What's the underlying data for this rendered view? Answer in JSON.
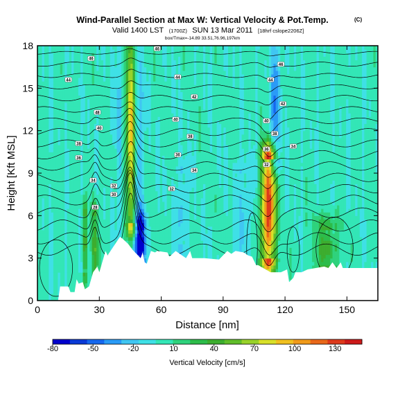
{
  "chart_data": {
    "type": "heatmap",
    "title": "Wind-Parallel Section at Max W: Vertical Velocity & Pot.Temp.",
    "title_mark": "(C)",
    "subtitle_main": "Valid 1400 LST",
    "subtitle_utc": "(1700Z)",
    "subtitle_date": "SUN 13 Mar 2011",
    "subtitle_tag": "[18hrf cslope2206Z]",
    "subtitle2": "box/Tmax=-14.89 33.51,76.96,197km",
    "xlabel": "Distance [nm]",
    "ylabel": "Height [Kft MSL]",
    "xlim": [
      0,
      165
    ],
    "ylim": [
      0,
      18
    ],
    "xticks": [
      "0",
      "30",
      "60",
      "90",
      "120",
      "150"
    ],
    "xtick_values": [
      0,
      30,
      60,
      90,
      120,
      150
    ],
    "yticks": [
      "0",
      "3",
      "6",
      "9",
      "12",
      "15",
      "18"
    ],
    "ytick_values": [
      0,
      3,
      6,
      9,
      12,
      15,
      18
    ],
    "colorbar": {
      "label": "Vertical Velocity [cm/s]",
      "tick_labels": [
        "-80",
        "-50",
        "-20",
        "10",
        "40",
        "70",
        "100",
        "130"
      ],
      "tick_values": [
        -80,
        -50,
        -20,
        10,
        40,
        70,
        100,
        130
      ],
      "min": -80,
      "max": 150,
      "colors": [
        "#0000cc",
        "#0a3ad6",
        "#1668ee",
        "#2a9bf6",
        "#40c6f2",
        "#3fe0e6",
        "#33e6b6",
        "#2fd27c",
        "#2dbc4a",
        "#3dad2f",
        "#60bd2a",
        "#98d22a",
        "#d8e02a",
        "#f0c020",
        "#f09a1a",
        "#e8681a",
        "#dd3a1c",
        "#cc1a1a"
      ]
    },
    "background_w": 0,
    "features": [
      {
        "kind": "updraft",
        "x": 45.5,
        "width": 2.6,
        "ylo": 5.5,
        "yhi": 18,
        "peak": 95
      },
      {
        "kind": "updraft",
        "x": 112,
        "width": 3.4,
        "ylo": 3,
        "yhi": 10,
        "peak": 140
      },
      {
        "kind": "updraft",
        "x": 28,
        "width": 1.5,
        "ylo": 1,
        "yhi": 6,
        "peak": 50
      },
      {
        "kind": "updraft",
        "x": 23,
        "width": 1.2,
        "ylo": 2,
        "yhi": 6,
        "peak": 45
      },
      {
        "kind": "updraft",
        "x": 140,
        "width": 6,
        "ylo": 2.5,
        "yhi": 5,
        "peak": 40
      },
      {
        "kind": "downdraft",
        "x": 48.5,
        "width": 2.2,
        "ylo": 2.5,
        "yhi": 18,
        "peak": -45
      },
      {
        "kind": "downdraft",
        "x": 50,
        "width": 2.5,
        "ylo": 3,
        "yhi": 5,
        "peak": -75
      },
      {
        "kind": "downdraft",
        "x": 115.5,
        "width": 2,
        "ylo": 10,
        "yhi": 18,
        "peak": -45
      },
      {
        "kind": "downdraft",
        "x": 40,
        "width": 1.8,
        "ylo": 5,
        "yhi": 18,
        "peak": -20
      },
      {
        "kind": "downdraft",
        "x": 70,
        "width": 2.5,
        "ylo": 4,
        "yhi": 9,
        "peak": -20
      },
      {
        "kind": "downdraft",
        "x": 100,
        "width": 4,
        "ylo": 3,
        "yhi": 9,
        "peak": -18
      }
    ],
    "terrain_profile": {
      "x": [
        0,
        10,
        11,
        15,
        16,
        18,
        19,
        20,
        22,
        23,
        25,
        27,
        29,
        30,
        33,
        34,
        40,
        41,
        44,
        46,
        48,
        50,
        51,
        52,
        53,
        55,
        57,
        58,
        63,
        64,
        67,
        69,
        70,
        72,
        74,
        75,
        81,
        88,
        92,
        94,
        96,
        100,
        102,
        104,
        106,
        107,
        113,
        118,
        121,
        122,
        124,
        125,
        128,
        131,
        139,
        141,
        143,
        145,
        147,
        148,
        154,
        165
      ],
      "h": [
        0,
        0,
        1,
        1,
        0.6,
        0.6,
        1.5,
        1.2,
        1.3,
        0.8,
        1,
        2,
        2.4,
        2,
        3.5,
        3.2,
        4.5,
        4.4,
        4,
        3.6,
        3.3,
        3,
        3.4,
        2.7,
        2.6,
        3.5,
        3.4,
        3.5,
        3.4,
        3.1,
        3.5,
        3.3,
        3.2,
        3,
        3.5,
        3,
        3,
        2.9,
        3.5,
        3.3,
        3.5,
        3.4,
        3.2,
        3.1,
        2.5,
        2.5,
        2,
        2,
        2.2,
        1.3,
        1.6,
        2,
        2,
        2.2,
        2.4,
        2.3,
        2.7,
        2.3,
        2.7,
        2.3,
        2.3,
        2.3
      ]
    },
    "isentropes": [
      {
        "base": 3.6,
        "amp": 0.4,
        "waves": [
          [
            28,
            2.4,
            1.6
          ],
          [
            45,
            3.5,
            3.8
          ],
          [
            112,
            4,
            -1.5
          ]
        ]
      },
      {
        "base": 4.4,
        "amp": 0.4,
        "waves": [
          [
            28,
            2.4,
            1.6
          ],
          [
            45,
            3.5,
            3.6
          ],
          [
            112,
            4,
            -1.3
          ]
        ]
      },
      {
        "base": 5.3,
        "amp": 0.4,
        "waves": [
          [
            28,
            2.4,
            1.4
          ],
          [
            45,
            3.5,
            3.4
          ],
          [
            112,
            4,
            -1.2
          ]
        ]
      },
      {
        "base": 6.2,
        "amp": 0.35,
        "waves": [
          [
            28,
            2.4,
            1.2
          ],
          [
            45,
            3.5,
            3
          ],
          [
            112,
            4,
            -1
          ]
        ]
      },
      {
        "base": 7.1,
        "amp": 0.35,
        "waves": [
          [
            28,
            2.4,
            1
          ],
          [
            45,
            3.5,
            2.6
          ],
          [
            112,
            4,
            -0.9
          ]
        ]
      },
      {
        "base": 7.9,
        "amp": 0.3,
        "waves": [
          [
            28,
            2.4,
            0.9
          ],
          [
            45,
            3.5,
            2.3
          ],
          [
            112,
            4,
            -0.9
          ]
        ]
      },
      {
        "base": 8.7,
        "amp": 0.3,
        "waves": [
          [
            28,
            2.4,
            0.8
          ],
          [
            45,
            3.5,
            2
          ],
          [
            112,
            4,
            -1
          ]
        ]
      },
      {
        "base": 9.5,
        "amp": 0.3,
        "waves": [
          [
            28,
            2.4,
            0.7
          ],
          [
            45,
            3.5,
            1.7
          ],
          [
            112,
            4,
            -1.1
          ]
        ]
      },
      {
        "base": 10.3,
        "amp": 0.3,
        "waves": [
          [
            28,
            2.4,
            0.6
          ],
          [
            45,
            3.5,
            1.5
          ],
          [
            112,
            4,
            -1
          ]
        ]
      },
      {
        "base": 11.1,
        "amp": 0.25,
        "waves": [
          [
            28,
            2.4,
            0.5
          ],
          [
            45,
            3.5,
            1.3
          ],
          [
            112,
            4,
            -0.9
          ]
        ]
      },
      {
        "base": 11.9,
        "amp": 0.25,
        "waves": [
          [
            28,
            2.4,
            0.4
          ],
          [
            45,
            3.5,
            1.1
          ],
          [
            112,
            4,
            -0.8
          ]
        ]
      },
      {
        "base": 12.7,
        "amp": 0.2,
        "waves": [
          [
            28,
            2.4,
            0.3
          ],
          [
            45,
            3.5,
            0.9
          ],
          [
            112,
            4,
            -0.7
          ]
        ]
      },
      {
        "base": 13.5,
        "amp": 0.2,
        "waves": [
          [
            45,
            3.5,
            0.7
          ],
          [
            112,
            4,
            -0.6
          ]
        ]
      },
      {
        "base": 14.3,
        "amp": 0.2,
        "waves": [
          [
            45,
            3.5,
            0.6
          ],
          [
            112,
            4,
            -0.5
          ]
        ]
      },
      {
        "base": 15.1,
        "amp": 0.15,
        "waves": [
          [
            45,
            3.5,
            0.5
          ],
          [
            112,
            4,
            -0.5
          ]
        ]
      },
      {
        "base": 15.9,
        "amp": 0.15,
        "waves": [
          [
            45,
            3.5,
            0.4
          ],
          [
            112,
            4,
            -0.4
          ]
        ]
      },
      {
        "base": 16.7,
        "amp": 0.15,
        "waves": [
          [
            45,
            3.5,
            0.3
          ],
          [
            112,
            4,
            -0.3
          ]
        ]
      },
      {
        "base": 17.5,
        "amp": 0.1,
        "waves": [
          [
            45,
            3.5,
            0.2
          ],
          [
            112,
            4,
            -0.2
          ]
        ]
      }
    ],
    "closed_contours": [
      {
        "cx": 144,
        "cy": 3.7,
        "rx": 9,
        "ry": 2.2
      },
      {
        "cx": 104,
        "cy": 3.8,
        "rx": 2.6,
        "ry": 2.4
      },
      {
        "cx": 124,
        "cy": 3.6,
        "rx": 3,
        "ry": 1.6
      },
      {
        "cx": 9,
        "cy": 2.3,
        "rx": 8,
        "ry": 2
      }
    ],
    "contour_labels": [
      {
        "text": "44",
        "x": 15,
        "y": 15.6
      },
      {
        "text": "46",
        "x": 26,
        "y": 17.1
      },
      {
        "text": "48",
        "x": 29,
        "y": 13.3
      },
      {
        "text": "40",
        "x": 30,
        "y": 12.2
      },
      {
        "text": "38",
        "x": 20,
        "y": 11.1
      },
      {
        "text": "36",
        "x": 20,
        "y": 10.1
      },
      {
        "text": "34",
        "x": 27,
        "y": 8.5
      },
      {
        "text": "32",
        "x": 37,
        "y": 8.1
      },
      {
        "text": "30",
        "x": 37,
        "y": 7.5
      },
      {
        "text": "28",
        "x": 28,
        "y": 6.6
      },
      {
        "text": "46",
        "x": 58,
        "y": 17.8
      },
      {
        "text": "44",
        "x": 68,
        "y": 15.8
      },
      {
        "text": "42",
        "x": 76,
        "y": 14.4
      },
      {
        "text": "40",
        "x": 67,
        "y": 12.8
      },
      {
        "text": "38",
        "x": 74,
        "y": 11.6
      },
      {
        "text": "36",
        "x": 68,
        "y": 10.3
      },
      {
        "text": "34",
        "x": 76,
        "y": 9.2
      },
      {
        "text": "32",
        "x": 65,
        "y": 7.9
      },
      {
        "text": "46",
        "x": 118,
        "y": 16.7
      },
      {
        "text": "44",
        "x": 113,
        "y": 15.6
      },
      {
        "text": "42",
        "x": 119,
        "y": 13.9
      },
      {
        "text": "40",
        "x": 111,
        "y": 12.7
      },
      {
        "text": "38",
        "x": 115,
        "y": 11.8
      },
      {
        "text": "36",
        "x": 111,
        "y": 10.7
      },
      {
        "text": "34",
        "x": 124,
        "y": 10.9
      },
      {
        "text": "32",
        "x": 111,
        "y": 9.6
      }
    ]
  }
}
